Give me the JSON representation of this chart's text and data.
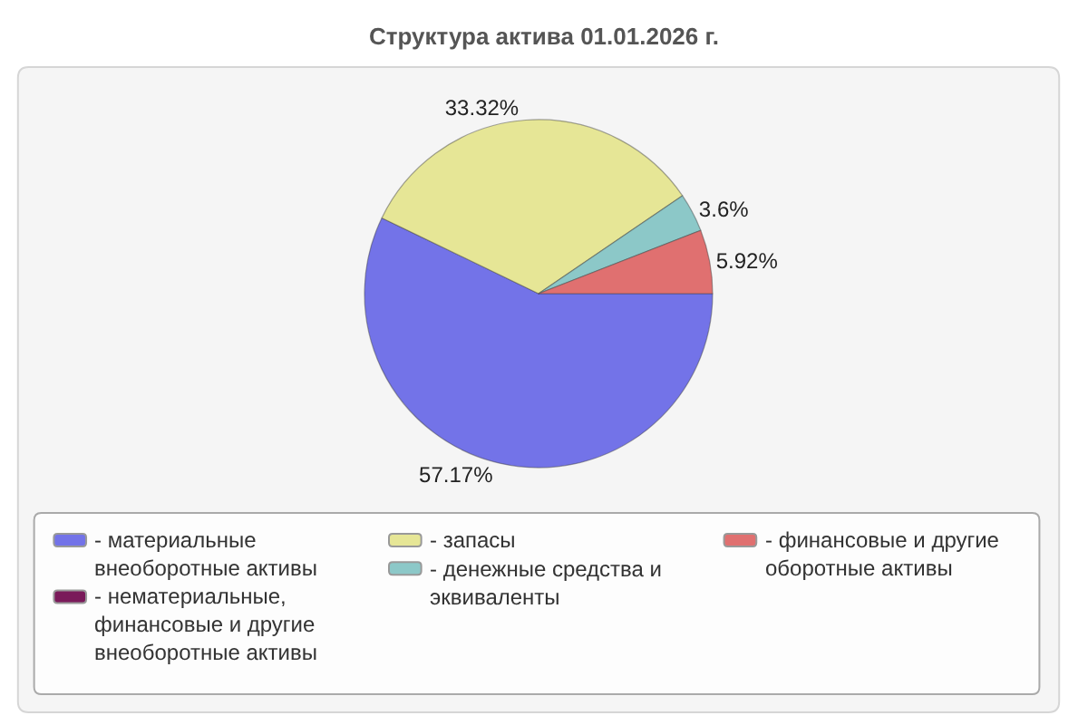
{
  "chart_data": {
    "type": "pie",
    "title": "Структура актива 01.01.2026 г.",
    "categories": [
      "- материальные внеоборотные активы",
      "- нематериальные, финансовые и другие внеоборотные активы",
      "- запасы",
      "- денежные средства и эквиваленты",
      "- финансовые и другие оборотные активы"
    ],
    "values": [
      57.17,
      0,
      33.32,
      3.6,
      5.92
    ],
    "value_labels": [
      "57.17%",
      null,
      "33.32%",
      "3.6%",
      "5.92%"
    ],
    "colors": [
      "#7373e8",
      "#7a1a5a",
      "#e6e696",
      "#8cc8c8",
      "#e07070"
    ],
    "legend": "bottom"
  }
}
